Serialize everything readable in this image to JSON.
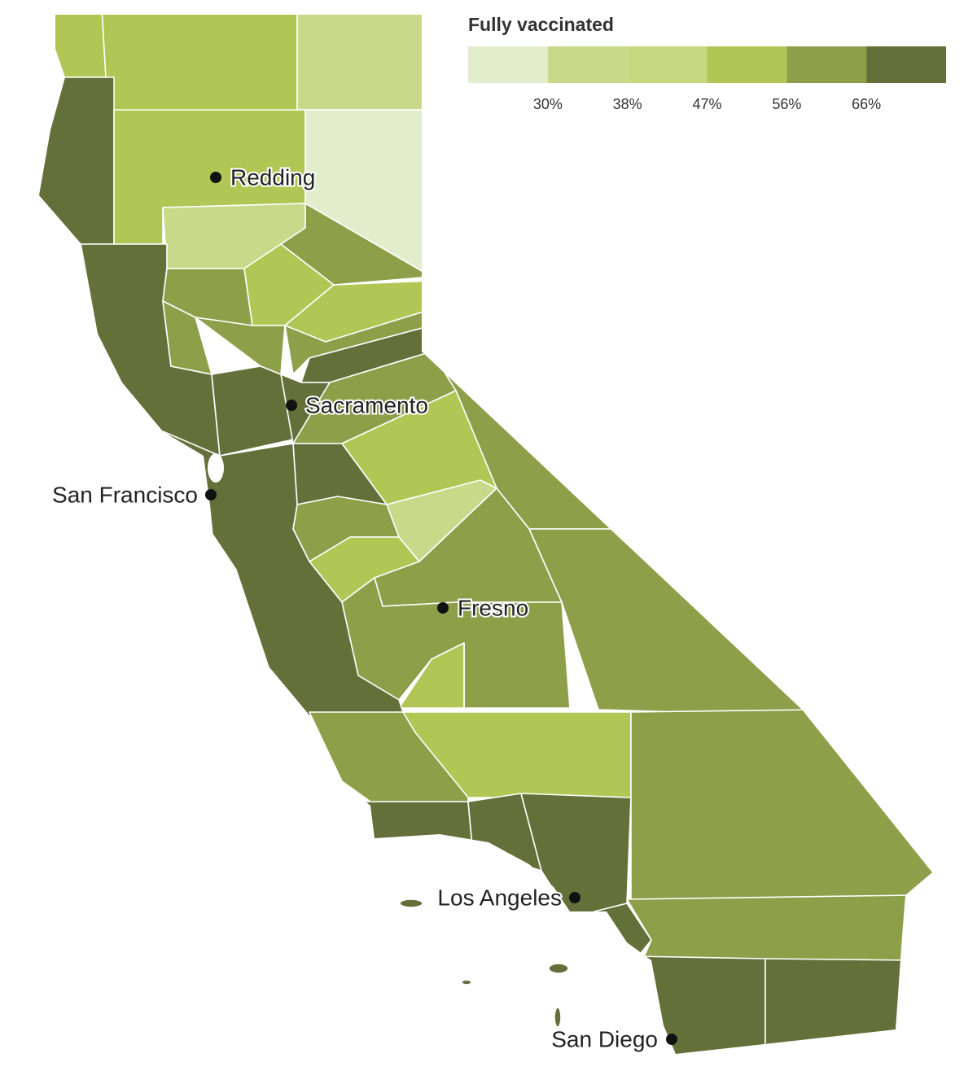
{
  "legend": {
    "title": "Fully vaccinated",
    "colors": [
      "#e2edcc",
      "#c9d98a",
      "#c8d880",
      "#b2c655",
      "#8e9f4a",
      "#647039"
    ],
    "ticks": [
      {
        "value": 30,
        "label": "30%"
      },
      {
        "value": 38,
        "label": "38%"
      },
      {
        "value": 47,
        "label": "47%"
      },
      {
        "value": 56,
        "label": "56%"
      },
      {
        "value": 66,
        "label": "66%"
      }
    ]
  },
  "cities": [
    "Redding",
    "Sacramento",
    "San Francisco",
    "Fresno",
    "Los Angeles",
    "San Diego"
  ]
}
